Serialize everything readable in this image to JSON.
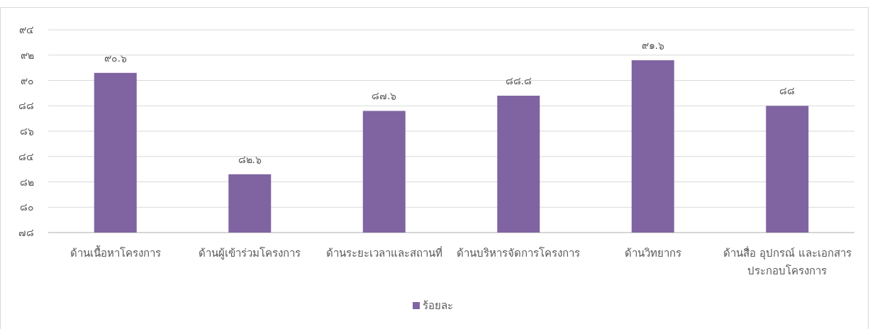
{
  "chart_data": {
    "type": "bar",
    "categories": [
      "ด้านเนื้อหาโครงการ",
      "ด้านผู้เข้าร่วมโครงการ",
      "ด้านระยะเวลาและสถานที่",
      "ด้านบริหารจัดการโครงการ",
      "ด้านวิทยากร",
      "ด้านสื่อ อุปกรณ์ และเอกสาร ประกอบโครงการ"
    ],
    "series": [
      {
        "name": "ร้อยละ",
        "color": "#8064a2",
        "values": [
          90.6,
          82.6,
          87.6,
          88.8,
          91.6,
          88
        ],
        "value_labels": [
          "๙๐.๖",
          "๘๒.๖",
          "๘๗.๖",
          "๘๘.๘",
          "๙๑.๖",
          "๘๘"
        ]
      }
    ],
    "ylim": [
      78,
      94
    ],
    "yticks": [
      {
        "value": 78,
        "label": "๗๘"
      },
      {
        "value": 80,
        "label": "๘๐"
      },
      {
        "value": 82,
        "label": "๘๒"
      },
      {
        "value": 84,
        "label": "๘๔"
      },
      {
        "value": 86,
        "label": "๘๖"
      },
      {
        "value": 88,
        "label": "๘๘"
      },
      {
        "value": 90,
        "label": "๙๐"
      },
      {
        "value": 92,
        "label": "๙๒"
      },
      {
        "value": 94,
        "label": "๙๔"
      }
    ],
    "grid": "y",
    "legend": "bottom"
  }
}
